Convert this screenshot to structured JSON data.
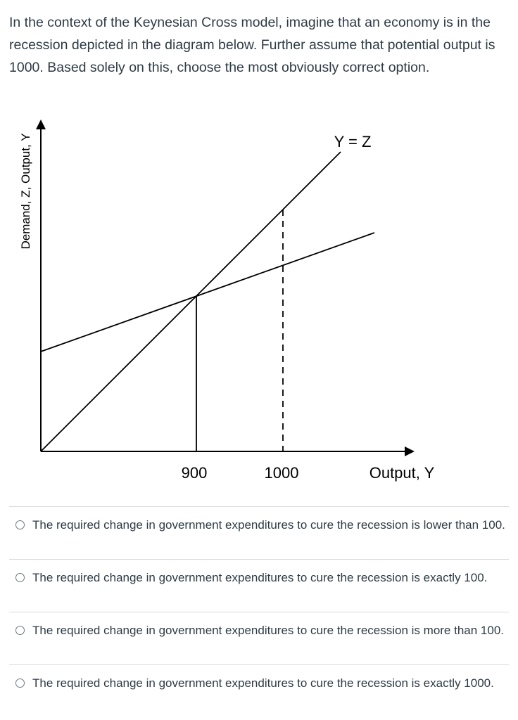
{
  "question": {
    "text": "In the context of the Keynesian Cross model, imagine that an economy is in the recession depicted in the diagram below. Further assume that potential output is 1000. Based solely on this, choose the most obviously correct option."
  },
  "diagram": {
    "y_axis_label": "Demand, Z, Output, Y",
    "x_axis_label": "Output, Y",
    "line_label": "Y = Z",
    "tick_labels": [
      "900",
      "1000"
    ]
  },
  "options": [
    {
      "text": "The required change in government expenditures to cure the recession is lower than 100.",
      "selected": false
    },
    {
      "text": "The required change in government expenditures to cure the recession is exactly 100.",
      "selected": false
    },
    {
      "text": "The required change in government expenditures to cure the recession is more than 100.",
      "selected": false
    },
    {
      "text": "The required change in government expenditures to cure the recession is exactly 1000.",
      "selected": false
    }
  ]
}
